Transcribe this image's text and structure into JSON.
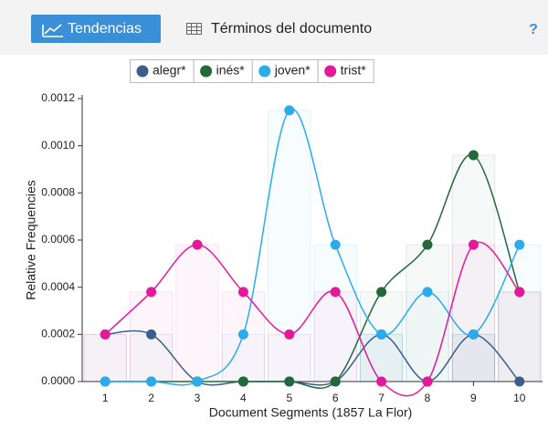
{
  "toolbar": {
    "tabs": [
      "Tendencias",
      "Términos del documento"
    ],
    "help": "?"
  },
  "chart_data": {
    "type": "line",
    "x_label": "Document Segments (1857 La Flor)",
    "y_label": "Relative Frequencies",
    "categories": [
      "1",
      "2",
      "3",
      "4",
      "5",
      "6",
      "7",
      "8",
      "9",
      "10"
    ],
    "ylim": [
      0,
      0.0012
    ],
    "yticks": [
      {
        "value": 0,
        "label": "0.0000"
      },
      0.0002,
      0.0004,
      0.0006,
      0.0008,
      {
        "value": 0.001,
        "label": "0.0010"
      },
      0.0012
    ],
    "series": [
      {
        "name": "alegr*",
        "color": "#3a5f8d",
        "values": [
          0.0002,
          0.0002,
          0,
          0,
          0,
          0,
          0.0002,
          0,
          0.0002,
          0
        ]
      },
      {
        "name": "inés*",
        "color": "#23683a",
        "values": [
          0,
          0,
          0,
          0,
          0,
          0,
          0.00038,
          0.00058,
          0.00096,
          0.00038
        ]
      },
      {
        "name": "joven*",
        "color": "#2aacec",
        "values": [
          0,
          0,
          0,
          0.0002,
          0.00115,
          0.00058,
          0.0002,
          0.00038,
          0.0002,
          0.00058
        ]
      },
      {
        "name": "trist*",
        "color": "#e5189c",
        "values": [
          0.0002,
          0.00038,
          0.00058,
          0.00038,
          0.0002,
          0.00038,
          0,
          0,
          0.00058,
          0.00038
        ]
      }
    ]
  }
}
